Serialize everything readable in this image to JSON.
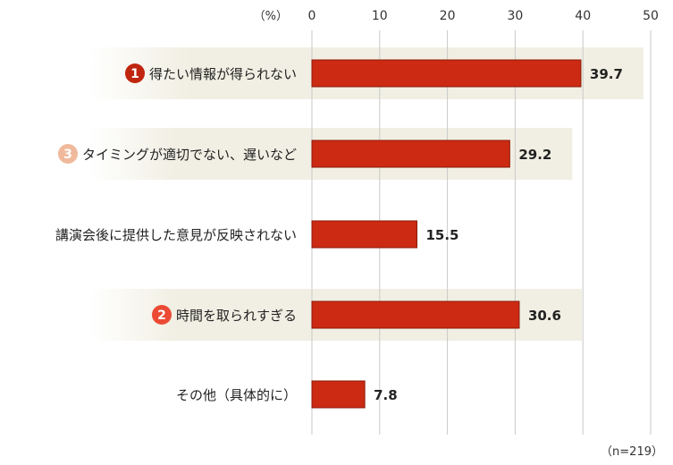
{
  "chart_data": {
    "type": "bar",
    "orientation": "horizontal",
    "unit_label": "（%）",
    "xlim": [
      0,
      50
    ],
    "xticks": [
      "0",
      "10",
      "20",
      "30",
      "40",
      "50"
    ],
    "grid": true,
    "categories": [
      "得たい情報が得られない",
      "タイミングが適切でない、遅いなど",
      "講演会後に提供した意見が反映されない",
      "時間を取られすぎる",
      "その他（具体的に）"
    ],
    "values": [
      39.7,
      29.2,
      15.5,
      30.6,
      7.8
    ],
    "value_labels": [
      "39.7",
      "29.2",
      "15.5",
      "30.6",
      "7.8"
    ],
    "rank_badges": [
      "1",
      "3",
      "",
      "2",
      ""
    ],
    "note": "（n=219）"
  },
  "colors": {
    "bar": "#cc2a12",
    "bar_border": "#8a1a0a",
    "highlight_band": "#f1efe3",
    "grid": "#c8c8c8",
    "badge_1": "#c0260f",
    "badge_2": "#ec4a35",
    "badge_3": "#f0b99b"
  }
}
